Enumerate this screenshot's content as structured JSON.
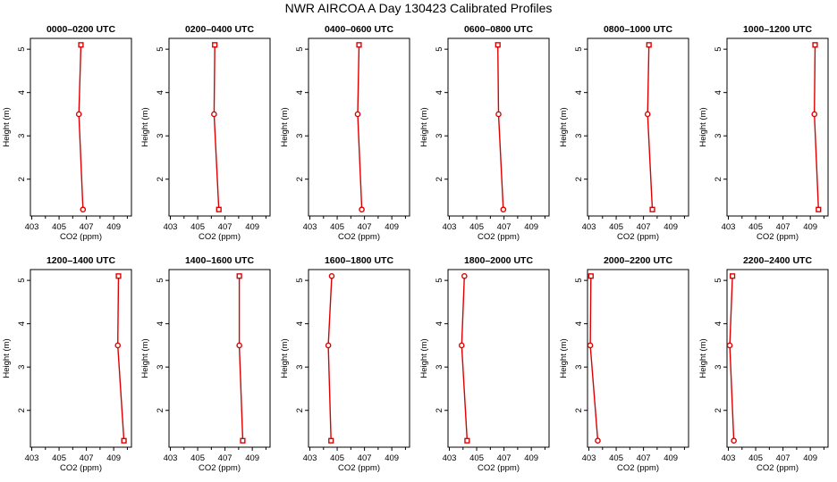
{
  "page": {
    "title": "NWR AIRCOA A  Day 130423  Calibrated Profiles"
  },
  "colors": {
    "series": "#dd0000",
    "axis": "#000000",
    "background": "#ffffff"
  },
  "chart_data": [
    {
      "type": "line",
      "title": "0000–0200 UTC",
      "xlabel": "CO2 (ppm)",
      "ylabel": "Height (m)",
      "xlim": [
        402.9,
        410.3
      ],
      "ylim": [
        1.15,
        5.25
      ],
      "xticks": [
        403,
        405,
        407,
        409
      ],
      "yticks": [
        2,
        3,
        4,
        5
      ],
      "points": [
        {
          "x": 406.6,
          "y": 5.1,
          "marker": "square"
        },
        {
          "x": 406.45,
          "y": 3.5,
          "marker": "circle"
        },
        {
          "x": 406.75,
          "y": 1.3,
          "marker": "circle"
        }
      ]
    },
    {
      "type": "line",
      "title": "0200–0400 UTC",
      "xlabel": "CO2 (ppm)",
      "ylabel": "Height (m)",
      "xlim": [
        402.9,
        410.3
      ],
      "ylim": [
        1.15,
        5.25
      ],
      "xticks": [
        403,
        405,
        407,
        409
      ],
      "yticks": [
        2,
        3,
        4,
        5
      ],
      "points": [
        {
          "x": 406.25,
          "y": 5.1,
          "marker": "square"
        },
        {
          "x": 406.2,
          "y": 3.5,
          "marker": "circle"
        },
        {
          "x": 406.55,
          "y": 1.3,
          "marker": "square"
        }
      ]
    },
    {
      "type": "line",
      "title": "0400–0600 UTC",
      "xlabel": "CO2 (ppm)",
      "ylabel": "Height (m)",
      "xlim": [
        402.9,
        410.3
      ],
      "ylim": [
        1.15,
        5.25
      ],
      "xticks": [
        403,
        405,
        407,
        409
      ],
      "yticks": [
        2,
        3,
        4,
        5
      ],
      "points": [
        {
          "x": 406.6,
          "y": 5.1,
          "marker": "square"
        },
        {
          "x": 406.5,
          "y": 3.5,
          "marker": "circle"
        },
        {
          "x": 406.8,
          "y": 1.3,
          "marker": "circle"
        }
      ]
    },
    {
      "type": "line",
      "title": "0600–0800 UTC",
      "xlabel": "CO2 (ppm)",
      "ylabel": "Height (m)",
      "xlim": [
        402.9,
        410.3
      ],
      "ylim": [
        1.15,
        5.25
      ],
      "xticks": [
        403,
        405,
        407,
        409
      ],
      "yticks": [
        2,
        3,
        4,
        5
      ],
      "points": [
        {
          "x": 406.55,
          "y": 5.1,
          "marker": "square"
        },
        {
          "x": 406.6,
          "y": 3.5,
          "marker": "circle"
        },
        {
          "x": 406.95,
          "y": 1.3,
          "marker": "circle"
        }
      ]
    },
    {
      "type": "line",
      "title": "0800–1000 UTC",
      "xlabel": "CO2 (ppm)",
      "ylabel": "Height (m)",
      "xlim": [
        402.9,
        410.3
      ],
      "ylim": [
        1.15,
        5.25
      ],
      "xticks": [
        403,
        405,
        407,
        409
      ],
      "yticks": [
        2,
        3,
        4,
        5
      ],
      "points": [
        {
          "x": 407.4,
          "y": 5.1,
          "marker": "square"
        },
        {
          "x": 407.3,
          "y": 3.5,
          "marker": "circle"
        },
        {
          "x": 407.65,
          "y": 1.3,
          "marker": "square"
        }
      ]
    },
    {
      "type": "line",
      "title": "1000–1200 UTC",
      "xlabel": "CO2 (ppm)",
      "ylabel": "Height (m)",
      "xlim": [
        402.9,
        410.3
      ],
      "ylim": [
        1.15,
        5.25
      ],
      "xticks": [
        403,
        405,
        407,
        409
      ],
      "yticks": [
        2,
        3,
        4,
        5
      ],
      "points": [
        {
          "x": 409.35,
          "y": 5.1,
          "marker": "square"
        },
        {
          "x": 409.3,
          "y": 3.5,
          "marker": "circle"
        },
        {
          "x": 409.6,
          "y": 1.3,
          "marker": "square"
        }
      ]
    },
    {
      "type": "line",
      "title": "1200–1400 UTC",
      "xlabel": "CO2 (ppm)",
      "ylabel": "Height (m)",
      "xlim": [
        402.9,
        410.3
      ],
      "ylim": [
        1.15,
        5.25
      ],
      "xticks": [
        403,
        405,
        407,
        409
      ],
      "yticks": [
        2,
        3,
        4,
        5
      ],
      "points": [
        {
          "x": 409.35,
          "y": 5.1,
          "marker": "square"
        },
        {
          "x": 409.3,
          "y": 3.5,
          "marker": "circle"
        },
        {
          "x": 409.75,
          "y": 1.3,
          "marker": "square"
        }
      ]
    },
    {
      "type": "line",
      "title": "1400–1600 UTC",
      "xlabel": "CO2 (ppm)",
      "ylabel": "Height (m)",
      "xlim": [
        402.9,
        410.3
      ],
      "ylim": [
        1.15,
        5.25
      ],
      "xticks": [
        403,
        405,
        407,
        409
      ],
      "yticks": [
        2,
        3,
        4,
        5
      ],
      "points": [
        {
          "x": 408.05,
          "y": 5.1,
          "marker": "square"
        },
        {
          "x": 408.05,
          "y": 3.5,
          "marker": "circle"
        },
        {
          "x": 408.3,
          "y": 1.3,
          "marker": "square"
        }
      ]
    },
    {
      "type": "line",
      "title": "1600–1800 UTC",
      "xlabel": "CO2 (ppm)",
      "ylabel": "Height (m)",
      "xlim": [
        402.9,
        410.3
      ],
      "ylim": [
        1.15,
        5.25
      ],
      "xticks": [
        403,
        405,
        407,
        409
      ],
      "yticks": [
        2,
        3,
        4,
        5
      ],
      "points": [
        {
          "x": 404.6,
          "y": 5.1,
          "marker": "circle"
        },
        {
          "x": 404.35,
          "y": 3.5,
          "marker": "circle"
        },
        {
          "x": 404.55,
          "y": 1.3,
          "marker": "square"
        }
      ]
    },
    {
      "type": "line",
      "title": "1800–2000 UTC",
      "xlabel": "CO2 (ppm)",
      "ylabel": "Height (m)",
      "xlim": [
        402.9,
        410.3
      ],
      "ylim": [
        1.15,
        5.25
      ],
      "xticks": [
        403,
        405,
        407,
        409
      ],
      "yticks": [
        2,
        3,
        4,
        5
      ],
      "points": [
        {
          "x": 404.1,
          "y": 5.1,
          "marker": "circle"
        },
        {
          "x": 403.9,
          "y": 3.5,
          "marker": "circle"
        },
        {
          "x": 404.3,
          "y": 1.3,
          "marker": "square"
        }
      ]
    },
    {
      "type": "line",
      "title": "2000–2200 UTC",
      "xlabel": "CO2 (ppm)",
      "ylabel": "Height (m)",
      "xlim": [
        402.9,
        410.3
      ],
      "ylim": [
        1.15,
        5.25
      ],
      "xticks": [
        403,
        405,
        407,
        409
      ],
      "yticks": [
        2,
        3,
        4,
        5
      ],
      "points": [
        {
          "x": 403.15,
          "y": 5.1,
          "marker": "square"
        },
        {
          "x": 403.1,
          "y": 3.5,
          "marker": "circle"
        },
        {
          "x": 403.65,
          "y": 1.3,
          "marker": "circle"
        }
      ]
    },
    {
      "type": "line",
      "title": "2200–2400 UTC",
      "xlabel": "CO2 (ppm)",
      "ylabel": "Height (m)",
      "xlim": [
        402.9,
        410.3
      ],
      "ylim": [
        1.15,
        5.25
      ],
      "xticks": [
        403,
        405,
        407,
        409
      ],
      "yticks": [
        2,
        3,
        4,
        5
      ],
      "points": [
        {
          "x": 403.3,
          "y": 5.1,
          "marker": "square"
        },
        {
          "x": 403.1,
          "y": 3.5,
          "marker": "circle"
        },
        {
          "x": 403.4,
          "y": 1.3,
          "marker": "circle"
        }
      ]
    }
  ]
}
